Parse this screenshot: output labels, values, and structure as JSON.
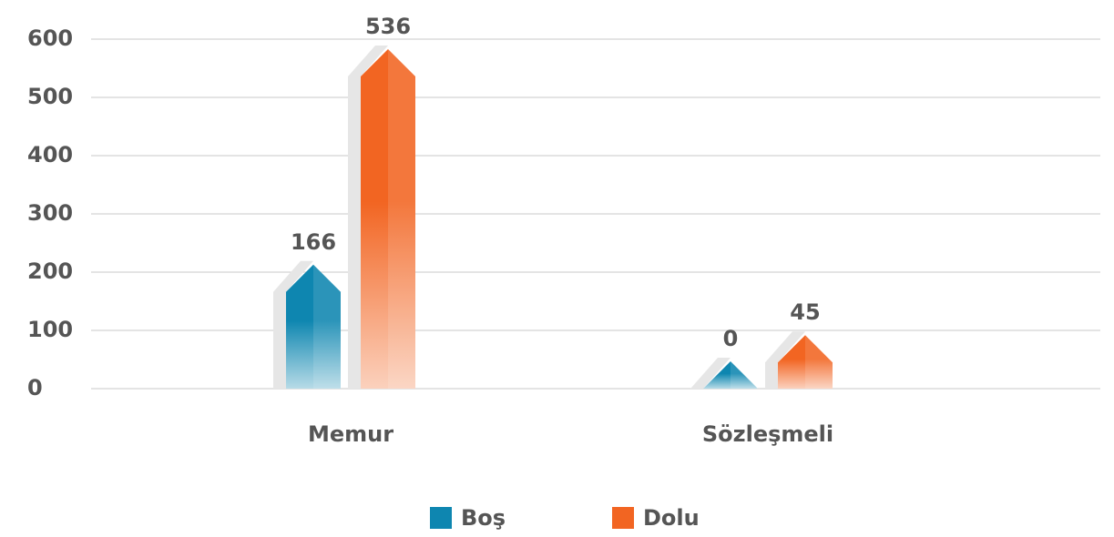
{
  "chart_data": {
    "type": "bar",
    "categories": [
      "Memur",
      "Sözleşmeli"
    ],
    "series": [
      {
        "name": "Boş",
        "color": "#0e86b0",
        "values": [
          166,
          0
        ]
      },
      {
        "name": "Dolu",
        "color": "#f26522",
        "values": [
          536,
          45
        ]
      }
    ],
    "ylim": [
      0,
      600
    ],
    "yticks": [
      0,
      100,
      200,
      300,
      400,
      500,
      600
    ],
    "grid": true,
    "legend": "bottom"
  }
}
